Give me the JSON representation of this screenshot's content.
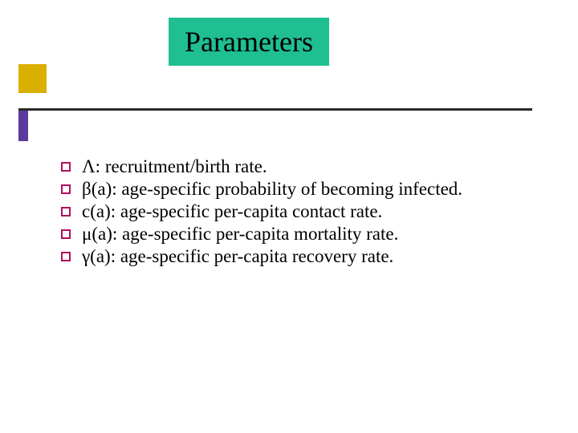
{
  "colors": {
    "title_bg": "#1fbf91",
    "gold": "#d9b000",
    "purple": "#5a3a9a",
    "line": "#2a2a2a",
    "bullet_border": "#b01060",
    "text": "#000000"
  },
  "title": "Parameters",
  "bullets": [
    "Λ: recruitment/birth rate.",
    "β(a): age-specific probability of becoming infected.",
    "c(a): age-specific per-capita contact rate.",
    "μ(a):  age-specific per-capita  mortality rate.",
    "γ(a): age-specific per-capita recovery rate."
  ],
  "layout": {
    "title_fontsize": 36,
    "body_fontsize": 23,
    "line_height": 28
  }
}
